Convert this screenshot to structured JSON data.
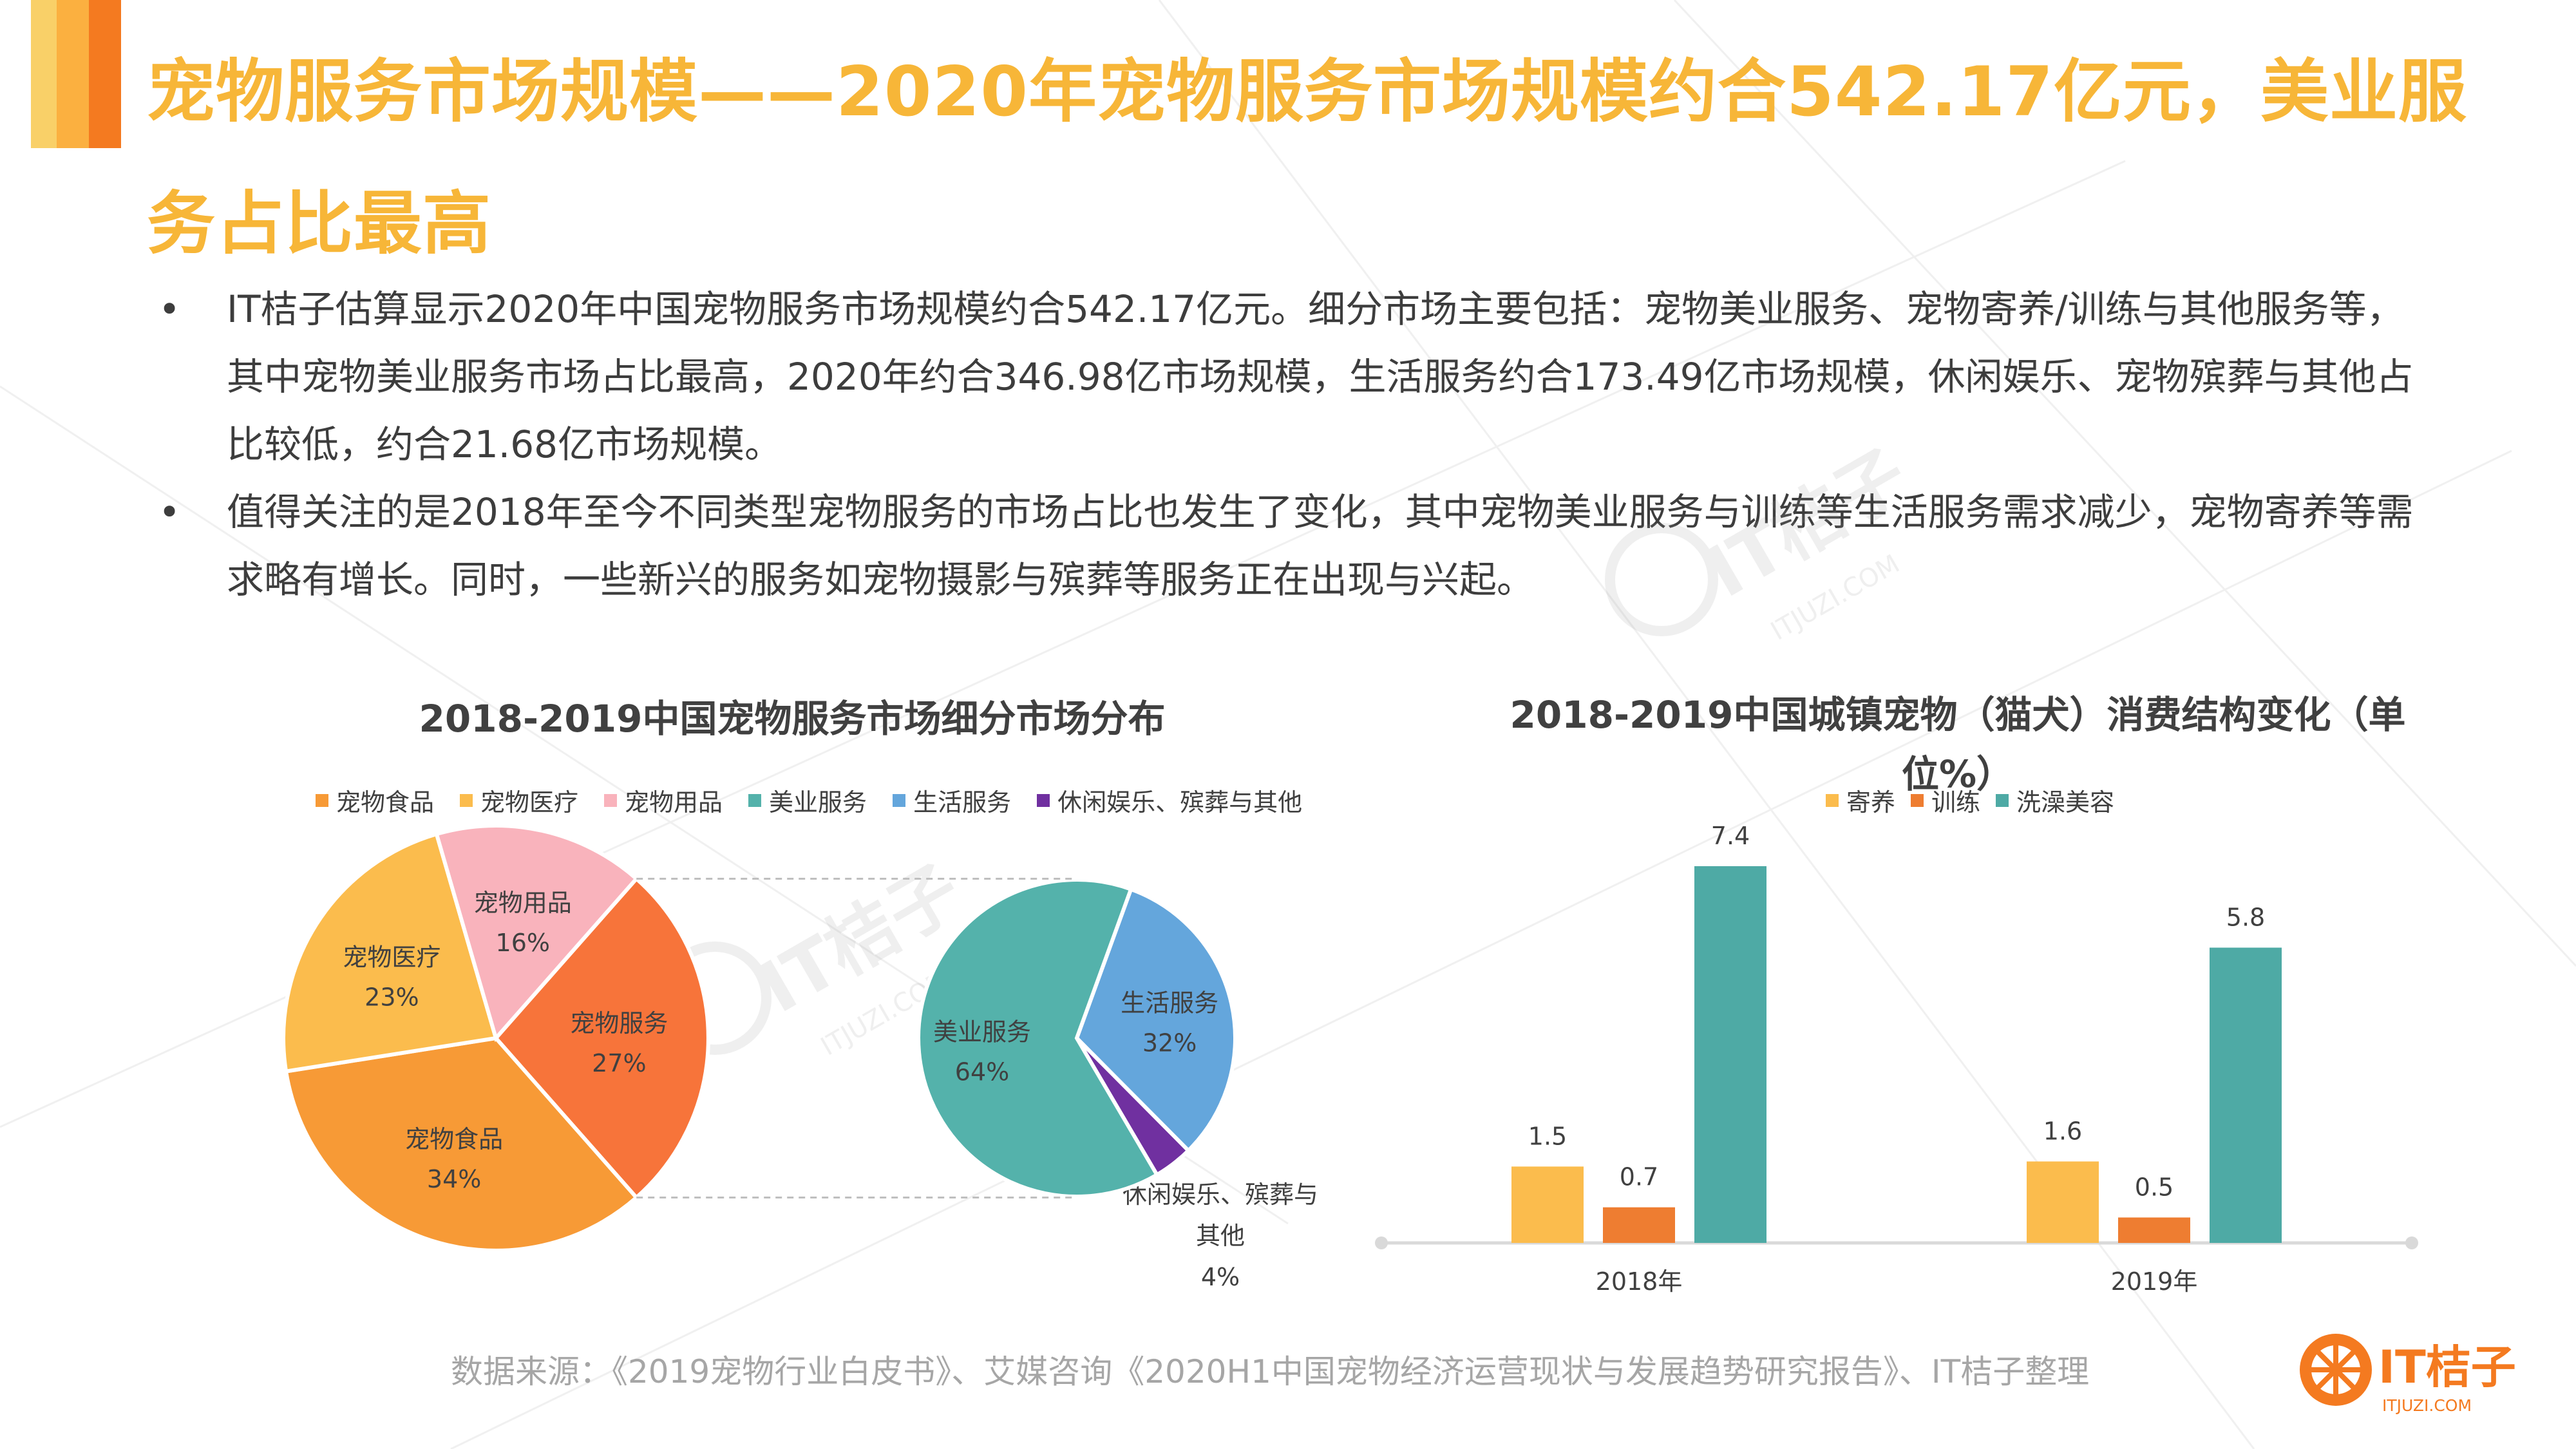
{
  "title": "宠物服务市场规模——2020年宠物服务市场规模约合542.17亿元，美业服务占比最高",
  "bullets": [
    "IT桔子估算显示2020年中国宠物服务市场规模约合542.17亿元。细分市场主要包括：宠物美业服务、宠物寄养/训练与其他服务等，其中宠物美业服务市场占比最高，2020年约合346.98亿市场规模，生活服务约合173.49亿市场规模，休闲娱乐、宠物殡葬与其他占比较低，约合21.68亿市场规模。",
    "值得关注的是2018年至今不同类型宠物服务的市场占比也发生了变化，其中宠物美业服务与训练等生活服务需求减少，宠物寄养等需求略有增长。同时，一些新兴的服务如宠物摄影与殡葬等服务正在出现与兴起。"
  ],
  "bullet_symbol": "•",
  "source": "数据来源：《2019宠物行业白皮书》、艾媒咨询《2020H1中国宠物经济运营现状与发展趋势研究报告》、IT桔子整理",
  "logo": {
    "text": "IT桔子",
    "sub": "ITJUZI.COM"
  },
  "watermark": {
    "text": "IT桔子",
    "sub": "ITJUZI.COM"
  },
  "chart_data": [
    {
      "type": "pie",
      "title": "2018-2019中国宠物服务市场细分市场分布",
      "legend": [
        {
          "name": "宠物食品",
          "color": "#f79a36"
        },
        {
          "name": "宠物医疗",
          "color": "#fbbc4d"
        },
        {
          "name": "宠物用品",
          "color": "#f9b3bc"
        },
        {
          "name": "美业服务",
          "color": "#54b2ab"
        },
        {
          "name": "生活服务",
          "color": "#64a6dc"
        },
        {
          "name": "休闲娱乐、殡葬与其他",
          "color": "#7030a0"
        }
      ],
      "main_pie": [
        {
          "name": "宠物服务",
          "value": 27,
          "label": "27%",
          "color": "#f7743a"
        },
        {
          "name": "宠物食品",
          "value": 34,
          "label": "34%",
          "color": "#f79a36"
        },
        {
          "name": "宠物医疗",
          "value": 23,
          "label": "23%",
          "color": "#fbbc4d"
        },
        {
          "name": "宠物用品",
          "value": 16,
          "label": "16%",
          "color": "#f9b3bc"
        }
      ],
      "sub_pie": [
        {
          "name": "生活服务",
          "value": 32,
          "label": "32%",
          "color": "#64a6dc"
        },
        {
          "name": "休闲娱乐、殡葬与其他",
          "label_lines": [
            "休闲娱乐、殡葬与",
            "其他"
          ],
          "value": 4,
          "label": "4%",
          "color": "#7030a0"
        },
        {
          "name": "美业服务",
          "value": 64,
          "label": "64%",
          "color": "#54b2ab"
        }
      ]
    },
    {
      "type": "bar",
      "title": "2018-2019中国城镇宠物（猫犬）消费结构变化（单位%）",
      "title_lines": [
        "2018-2019中国城镇宠物（猫犬）消费结构变化（单",
        "位%）"
      ],
      "categories": [
        "2018年",
        "2019年"
      ],
      "series": [
        {
          "name": "寄养",
          "color": "#fbbc4d",
          "values": [
            1.5,
            1.6
          ]
        },
        {
          "name": "训练",
          "color": "#ee7d31",
          "values": [
            0.7,
            0.5
          ]
        },
        {
          "name": "洗澡美容",
          "color": "#4eaaa5",
          "values": [
            7.4,
            5.8
          ]
        }
      ],
      "ylim": [
        0,
        7.4
      ]
    }
  ]
}
